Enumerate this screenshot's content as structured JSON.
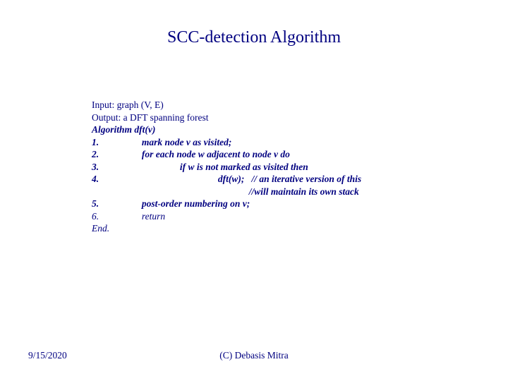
{
  "title": "SCC-detection Algorithm",
  "lines": [
    {
      "cls": "",
      "text": "Input: graph (V, E)"
    },
    {
      "cls": "",
      "text": "Output: a DFT spanning forest"
    },
    {
      "cls": "italic bold",
      "text": "Algorithm dft(v)"
    },
    {
      "cls": "italic bold",
      "text": "1.                  mark node v as visited;"
    },
    {
      "cls": "italic bold",
      "text": "2.                  for each node w adjacent to node v do"
    },
    {
      "cls": "italic bold",
      "text": "3.                                  if w is not marked as visited then"
    },
    {
      "cls": "italic bold",
      "text": "4.                                                  dft(w);   // an iterative version of this"
    },
    {
      "cls": "italic bold",
      "text": "                                                                  //will maintain its own stack"
    },
    {
      "cls": "italic bold",
      "text": "5.                  post-order numbering on v;"
    },
    {
      "cls": "italic",
      "text": "6.                  return"
    },
    {
      "cls": "italic",
      "text": "End."
    }
  ],
  "footer": {
    "date": "9/15/2020",
    "copyright": "(C) Debasis Mitra"
  },
  "colors": {
    "text": "#000080",
    "background": "#ffffff"
  }
}
